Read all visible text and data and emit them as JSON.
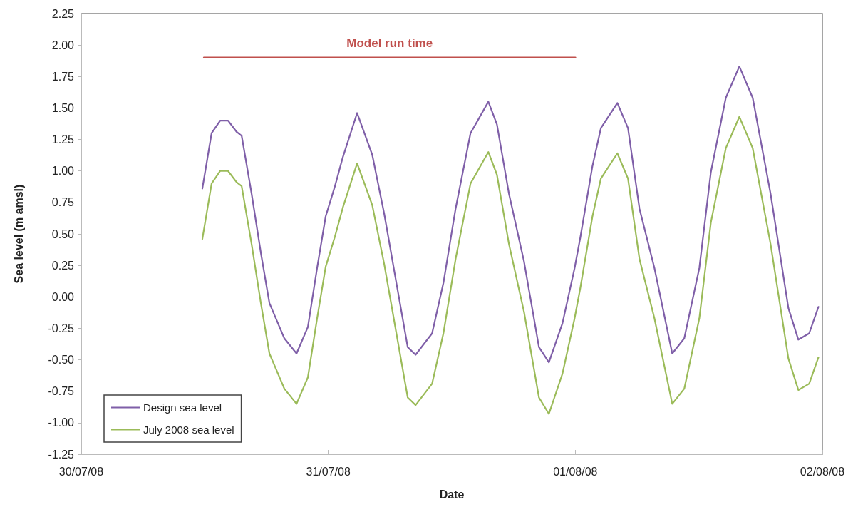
{
  "chart_data": {
    "type": "line",
    "xlabel": "Date",
    "ylabel": "Sea level (m amsl)",
    "xlim": [
      "2008-07-30",
      "2008-08-02"
    ],
    "xticks": [
      {
        "value": "2008-07-30",
        "label": "30/07/08"
      },
      {
        "value": "2008-07-31",
        "label": "31/07/08"
      },
      {
        "value": "2008-08-01",
        "label": "01/08/08"
      },
      {
        "value": "2008-08-02",
        "label": "02/08/08"
      }
    ],
    "ylim": [
      -1.25,
      2.25
    ],
    "yticks": [
      {
        "value": -1.25,
        "label": "-1.25"
      },
      {
        "value": -1,
        "label": "-1.00"
      },
      {
        "value": -0.75,
        "label": "-0.75"
      },
      {
        "value": -0.5,
        "label": "-0.50"
      },
      {
        "value": -0.25,
        "label": "-0.25"
      },
      {
        "value": 0,
        "label": "0.00"
      },
      {
        "value": 0.25,
        "label": "0.25"
      },
      {
        "value": 0.5,
        "label": "0.50"
      },
      {
        "value": 0.75,
        "label": "0.75"
      },
      {
        "value": 1,
        "label": "1.00"
      },
      {
        "value": 1.25,
        "label": "1.25"
      },
      {
        "value": 1.5,
        "label": "1.50"
      },
      {
        "value": 1.75,
        "label": "1.75"
      },
      {
        "value": 2,
        "label": "2.00"
      },
      {
        "value": 2.25,
        "label": "2.25"
      }
    ],
    "x": [
      "2008-07-30T11:46",
      "2008-07-30T12:40",
      "2008-07-30T13:30",
      "2008-07-30T14:16",
      "2008-07-30T15:06",
      "2008-07-30T15:35",
      "2008-07-30T16:33",
      "2008-07-30T17:27",
      "2008-07-30T18:17",
      "2008-07-30T19:44",
      "2008-07-30T20:55",
      "2008-07-30T22:01",
      "2008-07-30T22:55",
      "2008-07-30T23:45",
      "2008-07-31T00:39",
      "2008-07-31T01:25",
      "2008-07-31T02:48",
      "2008-07-31T04:16",
      "2008-07-31T05:26",
      "2008-07-31T06:37",
      "2008-07-31T07:43",
      "2008-07-31T08:29",
      "2008-07-31T10:05",
      "2008-07-31T11:11",
      "2008-07-31T12:22",
      "2008-07-31T13:49",
      "2008-07-31T15:33",
      "2008-07-31T16:23",
      "2008-07-31T17:33",
      "2008-07-31T19:01",
      "2008-07-31T20:28",
      "2008-07-31T21:26",
      "2008-07-31T22:45",
      "2008-07-31T23:56",
      "2008-08-01T00:29",
      "2008-08-01T01:40",
      "2008-08-01T02:29",
      "2008-08-01T04:05",
      "2008-08-01T05:07",
      "2008-08-01T06:14",
      "2008-08-01T07:41",
      "2008-08-01T09:25",
      "2008-08-01T10:35",
      "2008-08-01T12:03",
      "2008-08-01T13:10",
      "2008-08-01T14:37",
      "2008-08-01T15:56",
      "2008-08-01T17:14",
      "2008-08-01T18:58",
      "2008-08-01T20:42",
      "2008-08-01T21:40",
      "2008-08-01T22:43",
      "2008-08-01T23:37"
    ],
    "series": [
      {
        "name": "Design sea level",
        "color": "#7f5fa8",
        "values": [
          0.86,
          1.3,
          1.4,
          1.4,
          1.31,
          1.28,
          0.82,
          0.35,
          -0.05,
          -0.33,
          -0.45,
          -0.24,
          0.23,
          0.64,
          0.88,
          1.11,
          1.46,
          1.13,
          0.66,
          0.11,
          -0.4,
          -0.46,
          -0.29,
          0.11,
          0.7,
          1.3,
          1.55,
          1.37,
          0.82,
          0.28,
          -0.4,
          -0.52,
          -0.21,
          0.23,
          0.47,
          1.04,
          1.34,
          1.54,
          1.34,
          0.7,
          0.23,
          -0.45,
          -0.33,
          0.23,
          0.99,
          1.58,
          1.83,
          1.58,
          0.82,
          -0.09,
          -0.34,
          -0.29,
          -0.08
        ]
      },
      {
        "name": "July 2008 sea level",
        "color": "#9bbb59",
        "values": [
          0.46,
          0.9,
          1.0,
          1.0,
          0.91,
          0.88,
          0.42,
          -0.05,
          -0.45,
          -0.73,
          -0.85,
          -0.64,
          -0.17,
          0.24,
          0.48,
          0.71,
          1.06,
          0.73,
          0.26,
          -0.29,
          -0.8,
          -0.86,
          -0.69,
          -0.29,
          0.3,
          0.9,
          1.15,
          0.97,
          0.42,
          -0.12,
          -0.8,
          -0.93,
          -0.61,
          -0.17,
          0.07,
          0.64,
          0.94,
          1.14,
          0.94,
          0.3,
          -0.17,
          -0.85,
          -0.73,
          -0.17,
          0.59,
          1.18,
          1.43,
          1.18,
          0.42,
          -0.49,
          -0.74,
          -0.69,
          -0.48
        ]
      },
      {
        "name": "Model run time",
        "color": "#c0504d",
        "x": [
          "2008-07-30T11:55",
          "2008-08-01T00:00"
        ],
        "values": [
          1.9,
          1.9
        ]
      }
    ],
    "grid": false,
    "legend": "bottom left",
    "marker": "none",
    "line_style": "solid"
  }
}
